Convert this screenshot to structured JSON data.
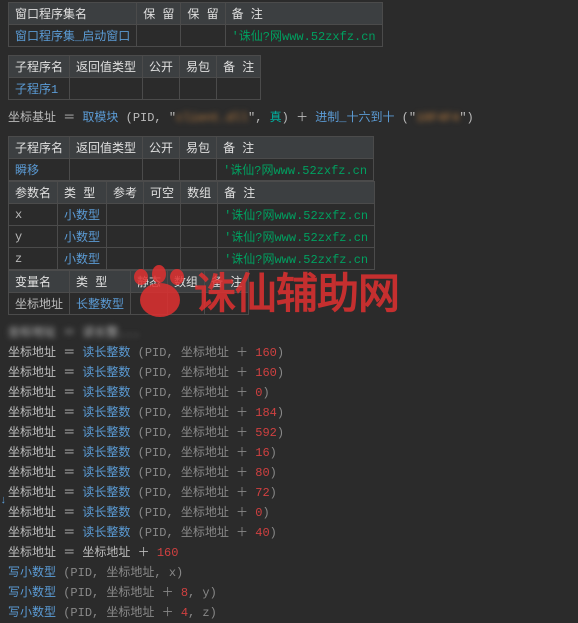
{
  "colors": {
    "bg": "#2b2b2b",
    "header_bg": "#3c3f41",
    "border": "#4b4b4b",
    "text": "#bbbbbb",
    "blue": "#5b9bd5",
    "green": "#00a060",
    "teal": "#00b0a0",
    "brown": "#c08040",
    "red": "#d04040",
    "gray": "#888888",
    "watermark_red": "#e03030"
  },
  "table1": {
    "headers": [
      "窗口程序集名",
      "保 留",
      "保 留",
      "备 注"
    ],
    "row": {
      "name": "窗口程序集_启动窗口",
      "note": "'诛仙?网www.52zxfz.cn"
    }
  },
  "table2": {
    "headers": [
      "子程序名",
      "返回值类型",
      "公开",
      "易包",
      "备 注"
    ],
    "row": {
      "name": "子程序1"
    }
  },
  "line1": {
    "pre": "坐标基址 ＝ ",
    "fn1": "取模块",
    "args1": " (PID, \"",
    "blurred1": "client.dll",
    "mid": "\", ",
    "true": "真",
    "after": ") ＋ ",
    "fn2": "进制_十六到十",
    "open2": " (\"",
    "blurred2": "10F4F4",
    "close2": "\")"
  },
  "table3": {
    "headers": [
      "子程序名",
      "返回值类型",
      "公开",
      "易包",
      "备 注"
    ],
    "row": {
      "name": "瞬移",
      "note": "'诛仙?网www.52zxfz.cn"
    }
  },
  "table4": {
    "headers": [
      "参数名",
      "类 型",
      "参考",
      "可空",
      "数组",
      "备 注"
    ],
    "rows": [
      {
        "n": "x",
        "t": "小数型",
        "note": "'诛仙?网www.52zxfz.cn"
      },
      {
        "n": "y",
        "t": "小数型",
        "note": "'诛仙?网www.52zxfz.cn"
      },
      {
        "n": "z",
        "t": "小数型",
        "note": "'诛仙?网www.52zxfz.cn"
      }
    ]
  },
  "table5": {
    "headers": [
      "变量名",
      "类 型",
      "静态",
      "数组",
      "备 注"
    ],
    "row": {
      "n": "坐标地址",
      "t": "长整数型"
    }
  },
  "codelines": [
    {
      "v": "坐标地址",
      "eq": " ＝ ",
      "fn": "读长整数",
      "a": "(PID, 坐标地址 ＋ ",
      "num": "160",
      "e": ")"
    },
    {
      "v": "坐标地址",
      "eq": " ＝ ",
      "fn": "读长整数",
      "a": "(PID, 坐标地址 ＋ ",
      "num": "160",
      "e": ")"
    },
    {
      "v": "坐标地址",
      "eq": " ＝ ",
      "fn": "读长整数",
      "a": "(PID, 坐标地址 ＋ ",
      "num": "0",
      "e": ")"
    },
    {
      "v": "坐标地址",
      "eq": " ＝ ",
      "fn": "读长整数",
      "a": "(PID, 坐标地址 ＋ ",
      "num": "184",
      "e": ")"
    },
    {
      "v": "坐标地址",
      "eq": " ＝ ",
      "fn": "读长整数",
      "a": "(PID, 坐标地址 ＋ ",
      "num": "592",
      "e": ")"
    },
    {
      "v": "坐标地址",
      "eq": " ＝ ",
      "fn": "读长整数",
      "a": "(PID, 坐标地址 ＋ ",
      "num": "16",
      "e": ")"
    },
    {
      "v": "坐标地址",
      "eq": " ＝ ",
      "fn": "读长整数",
      "a": "(PID, 坐标地址 ＋ ",
      "num": "80",
      "e": ")"
    },
    {
      "v": "坐标地址",
      "eq": " ＝ ",
      "fn": "读长整数",
      "a": "(PID, 坐标地址 ＋ ",
      "num": "72",
      "e": ")"
    },
    {
      "v": "坐标地址",
      "eq": " ＝ ",
      "fn": "读长整数",
      "a": "(PID, 坐标地址 ＋ ",
      "num": "0",
      "e": ")"
    },
    {
      "v": "坐标地址",
      "eq": " ＝ ",
      "fn": "读长整数",
      "a": "(PID, 坐标地址 ＋ ",
      "num": "40",
      "e": ")"
    }
  ],
  "codefoot": {
    "v": "坐标地址",
    "eq": " ＝ 坐标地址 ＋ ",
    "num": "160"
  },
  "writes": [
    {
      "fn": "写小数型",
      "a": " (PID, 坐标地址, x)"
    },
    {
      "fn": "写小数型",
      "a": " (PID, 坐标地址 ＋ ",
      "num": "8",
      "e": ", y)"
    },
    {
      "fn": "写小数型",
      "a": " (PID, 坐标地址 ＋ ",
      "num": "4",
      "e": ", z)"
    }
  ],
  "watermark": "诛仙辅助网",
  "topblur": "坐标地址 ＝ 读长整..."
}
